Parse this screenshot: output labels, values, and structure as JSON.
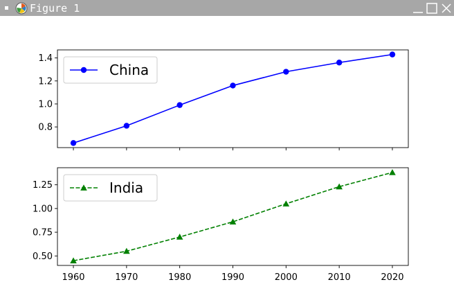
{
  "window": {
    "title": "Figure 1",
    "titlebar_color": "#a7a7a7",
    "icons": [
      "window-menu-icon",
      "matplotlib-logo-icon",
      "minimize-icon",
      "maximize-icon",
      "close-icon"
    ]
  },
  "chart_data": [
    {
      "type": "line",
      "x": [
        1960,
        1970,
        1980,
        1990,
        2000,
        2010,
        2020
      ],
      "series": [
        {
          "name": "China",
          "values": [
            0.66,
            0.81,
            0.99,
            1.16,
            1.28,
            1.36,
            1.43
          ],
          "color": "#0000ff",
          "marker": "circle",
          "linestyle": "solid"
        }
      ],
      "ylim": [
        0.62,
        1.47
      ],
      "yticks": [
        0.8,
        1.0,
        1.2,
        1.4
      ],
      "ytick_labels": [
        "0.8",
        "1.0",
        "1.2",
        "1.4"
      ],
      "xticks": [
        1960,
        1970,
        1980,
        1990,
        2000,
        2010,
        2020
      ],
      "show_xtick_labels": false,
      "legend": "upper-left",
      "title": "",
      "xlabel": "",
      "ylabel": ""
    },
    {
      "type": "line",
      "x": [
        1960,
        1970,
        1980,
        1990,
        2000,
        2010,
        2020
      ],
      "series": [
        {
          "name": "India",
          "values": [
            0.45,
            0.55,
            0.7,
            0.86,
            1.05,
            1.23,
            1.38
          ],
          "color": "#008000",
          "marker": "triangle",
          "linestyle": "dashed"
        }
      ],
      "ylim": [
        0.4,
        1.43
      ],
      "yticks": [
        0.5,
        0.75,
        1.0,
        1.25
      ],
      "ytick_labels": [
        "0.50",
        "0.75",
        "1.00",
        "1.25"
      ],
      "xticks": [
        1960,
        1970,
        1980,
        1990,
        2000,
        2010,
        2020
      ],
      "xtick_labels": [
        "1960",
        "1970",
        "1980",
        "1990",
        "2000",
        "2010",
        "2020"
      ],
      "show_xtick_labels": true,
      "legend": "upper-left",
      "title": "",
      "xlabel": "",
      "ylabel": ""
    }
  ]
}
